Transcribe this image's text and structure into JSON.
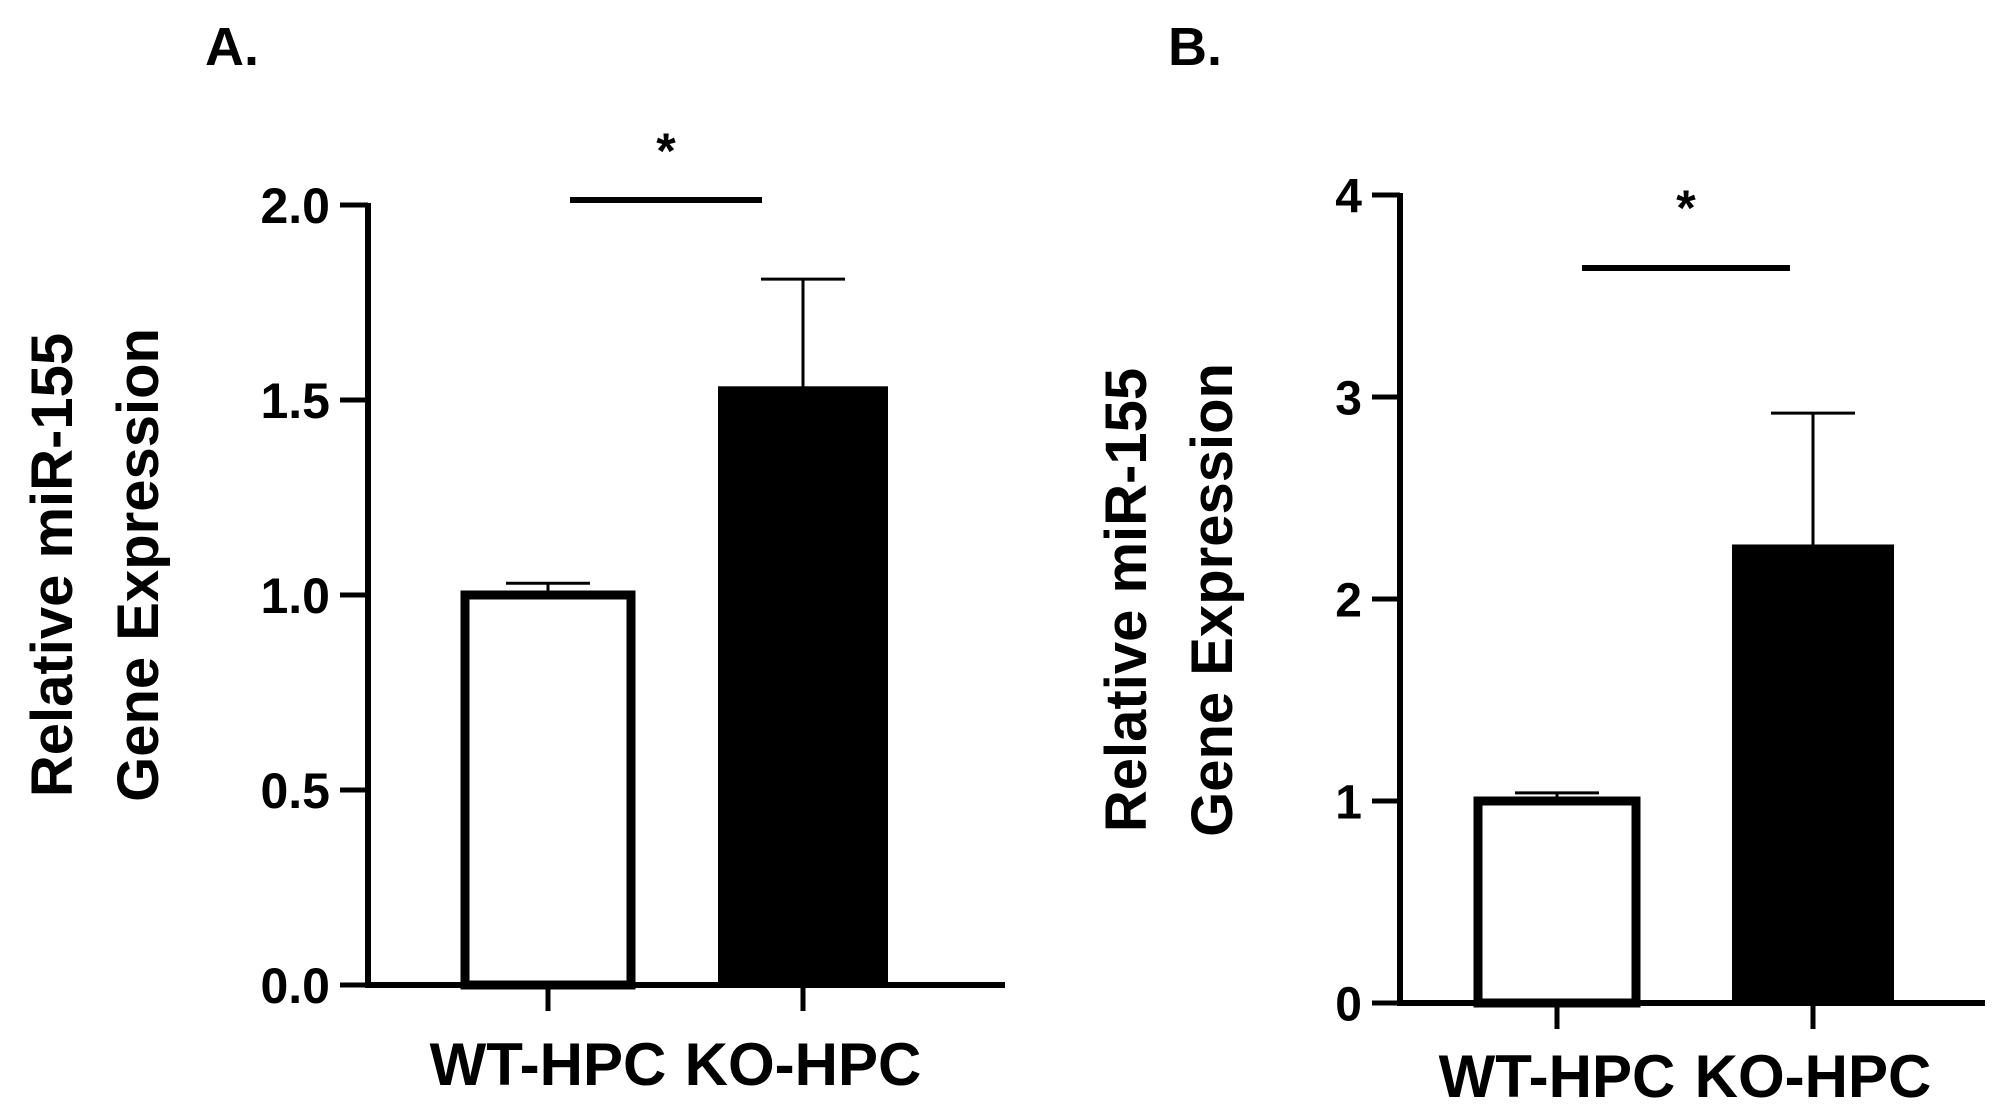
{
  "chart_data": [
    {
      "panel_label": "A.",
      "type": "bar",
      "categories": [
        "WT-HPC",
        "KO-HPC"
      ],
      "values": [
        1.0,
        1.53
      ],
      "errors": [
        0.03,
        0.28
      ],
      "bar_fills": [
        "#ffffff",
        "#000000"
      ],
      "ylabel_line1": "Relative miR-155",
      "ylabel_line2": "Gene Expression",
      "ylim": [
        0,
        2.0
      ],
      "yticks": [
        0,
        0.5,
        1.0,
        1.5,
        2.0
      ],
      "ytick_labels": [
        "0.0",
        "0.5",
        "1.0",
        "1.5",
        "2.0"
      ],
      "significance": "*",
      "grid": false
    },
    {
      "panel_label": "B.",
      "type": "bar",
      "categories": [
        "WT-HPC",
        "KO-HPC"
      ],
      "values": [
        1.0,
        2.26
      ],
      "errors": [
        0.04,
        0.66
      ],
      "bar_fills": [
        "#ffffff",
        "#000000"
      ],
      "ylabel_line1": "Relative miR-155",
      "ylabel_line2": "Gene Expression",
      "ylim": [
        0,
        4
      ],
      "yticks": [
        0,
        1,
        2,
        3,
        4
      ],
      "ytick_labels": [
        "0",
        "1",
        "2",
        "3",
        "4"
      ],
      "significance": "*",
      "grid": false
    }
  ]
}
